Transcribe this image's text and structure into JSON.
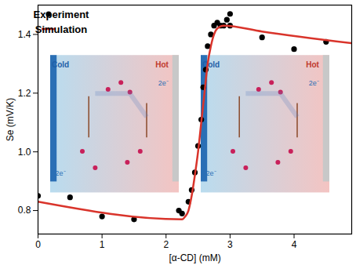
{
  "chart_data": {
    "type": "scatter",
    "x_label": "[α-CD] (mM)",
    "y_label": "Se (mV/K)",
    "xlim": [
      0,
      4.9
    ],
    "ylim": [
      0.72,
      1.5
    ],
    "xticks": [
      0,
      1,
      2,
      3,
      4
    ],
    "yticks": [
      0.8,
      {
        "value": 1,
        "label": "1.0"
      },
      1.2,
      1.4
    ],
    "legend": "top-left",
    "series": [
      {
        "name": "Experiment",
        "type": "scatter",
        "color": "#000000",
        "marker": "circle",
        "x": [
          0,
          0.5,
          1.0,
          1.5,
          2.2,
          2.25,
          2.35,
          2.4,
          2.45,
          2.5,
          2.55,
          2.58,
          2.62,
          2.65,
          2.7,
          2.75,
          2.8,
          2.85,
          2.9,
          2.95,
          3.0,
          3.0,
          3.5,
          4.0,
          4.5
        ],
        "values": [
          0.85,
          0.845,
          0.78,
          0.77,
          0.8,
          0.79,
          0.83,
          0.87,
          0.93,
          1.02,
          1.11,
          1.22,
          1.28,
          1.36,
          1.4,
          1.43,
          1.44,
          1.43,
          1.43,
          1.45,
          1.47,
          1.43,
          1.39,
          1.35,
          1.375
        ]
      },
      {
        "name": "Simulation",
        "type": "line",
        "color": "#d9342b",
        "line_style": "solid",
        "x": [
          0,
          2.25,
          2.3,
          2.35,
          2.4,
          2.45,
          2.5,
          2.55,
          2.6,
          2.65,
          2.7,
          2.75,
          2.8,
          2.9,
          3.5,
          4.9
        ],
        "values": [
          0.83,
          0.77,
          0.78,
          0.8,
          0.85,
          0.92,
          1.0,
          1.1,
          1.2,
          1.3,
          1.36,
          1.4,
          1.42,
          1.43,
          1.41,
          1.37
        ]
      }
    ],
    "insets": [
      {
        "left": "Cold",
        "right": "Hot",
        "electrons": [
          "2e⁻",
          "2e⁻"
        ]
      },
      {
        "left": "Cold",
        "right": "Hot",
        "electrons": [
          "2e⁻",
          "2e⁻"
        ]
      }
    ]
  }
}
